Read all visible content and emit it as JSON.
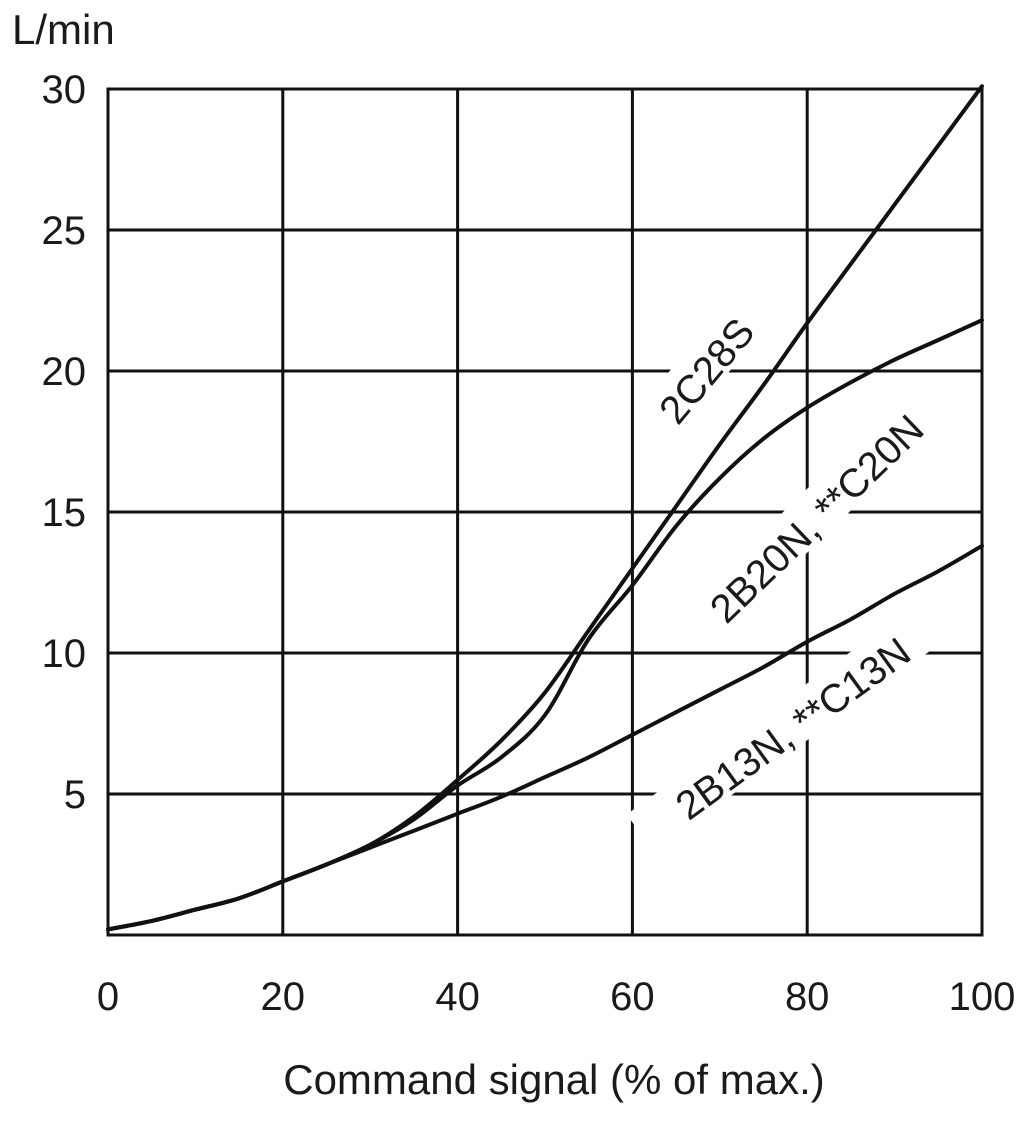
{
  "chart_data": {
    "type": "line",
    "xlabel": "Command signal (% of max.)",
    "ylabel": "L/min",
    "xlim": [
      0,
      100
    ],
    "ylim": [
      0,
      30
    ],
    "x_ticks": [
      0,
      20,
      40,
      60,
      80,
      100
    ],
    "y_ticks": [
      5,
      10,
      15,
      20,
      25,
      30
    ],
    "grid": true,
    "series": [
      {
        "name": "2C28S",
        "x": [
          0,
          5,
          10,
          15,
          20,
          25,
          30,
          35,
          40,
          45,
          50,
          55,
          60,
          65,
          70,
          75,
          80,
          85,
          90,
          95,
          100
        ],
        "y": [
          0.2,
          0.5,
          0.9,
          1.3,
          1.9,
          2.5,
          3.2,
          4.2,
          5.5,
          6.9,
          8.6,
          10.8,
          13.0,
          15.2,
          17.4,
          19.5,
          21.7,
          23.8,
          25.9,
          28.0,
          30.1
        ]
      },
      {
        "name": "2B20N, **C20N",
        "x": [
          0,
          5,
          10,
          15,
          20,
          25,
          30,
          35,
          40,
          45,
          50,
          55,
          60,
          65,
          70,
          75,
          80,
          85,
          90,
          95,
          100
        ],
        "y": [
          0.2,
          0.5,
          0.9,
          1.3,
          1.9,
          2.5,
          3.2,
          4.1,
          5.3,
          6.3,
          7.8,
          10.5,
          12.4,
          14.5,
          16.2,
          17.6,
          18.7,
          19.6,
          20.4,
          21.1,
          21.8
        ]
      },
      {
        "name": "2B13N, **C13N",
        "x": [
          0,
          5,
          10,
          15,
          20,
          25,
          30,
          35,
          40,
          45,
          50,
          55,
          60,
          65,
          70,
          75,
          80,
          85,
          90,
          95,
          100
        ],
        "y": [
          0.2,
          0.5,
          0.9,
          1.3,
          1.9,
          2.5,
          3.1,
          3.7,
          4.3,
          4.9,
          5.6,
          6.3,
          7.1,
          7.9,
          8.7,
          9.5,
          10.4,
          11.2,
          12.1,
          12.9,
          13.8
        ]
      }
    ]
  }
}
